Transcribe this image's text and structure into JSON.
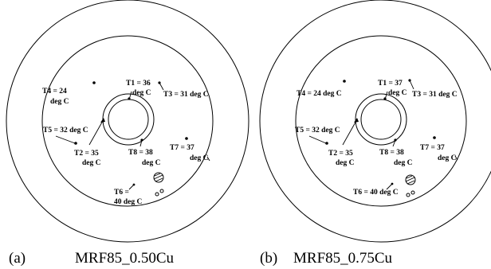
{
  "panels": [
    {
      "id": "a",
      "caption_tag": "(a)",
      "caption_name": "MRF85_0.50Cu",
      "labels": {
        "t1": [
          "T1 = 36",
          "deg C"
        ],
        "t2": [
          "T2 = 35",
          "deg C"
        ],
        "t3": [
          "T3 = 31 deg C"
        ],
        "t4": [
          "T4 = 24",
          "deg C"
        ],
        "t5": [
          "T5 = 32 deg C"
        ],
        "t6": [
          "T6 =",
          "40 deg C"
        ],
        "t7": [
          "T7 = 37",
          "deg C"
        ],
        "t8": [
          "T8 = 38",
          "deg C"
        ]
      }
    },
    {
      "id": "b",
      "caption_tag": "(b)",
      "caption_name": "MRF85_0.75Cu",
      "labels": {
        "t1": [
          "T1 = 37",
          "deg C"
        ],
        "t2": [
          "T2 = 35",
          "deg C"
        ],
        "t3": [
          "T3 = 31 deg C"
        ],
        "t4": [
          "T4 = 24 deg C"
        ],
        "t5": [
          "T5 = 32 deg C"
        ],
        "t6": [
          "T6 = 40 deg C"
        ],
        "t7": [
          "T7 = 37",
          "deg C"
        ],
        "t8": [
          "T8 = 38",
          "deg C"
        ]
      }
    }
  ]
}
